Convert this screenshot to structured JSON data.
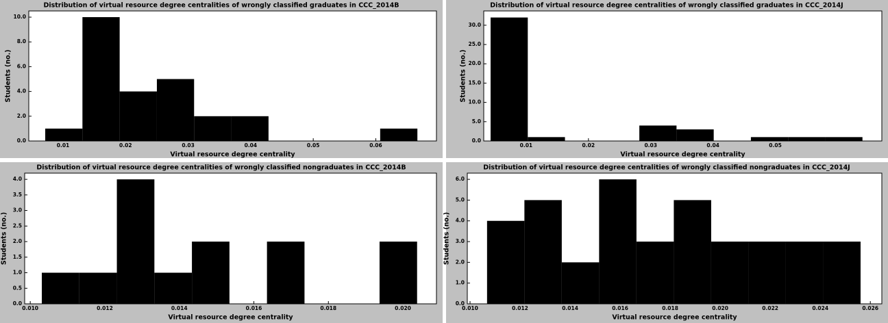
{
  "chart_data": [
    {
      "type": "histogram",
      "title": "Distribution of virtual resource degree centralities of wrongly classified graduates in CCC_2014B",
      "xlabel": "Virtual resource degree centrality",
      "ylabel": "Students (no.)",
      "color": "#000000",
      "bins": [
        0.00715,
        0.0131,
        0.01905,
        0.025,
        0.03095,
        0.0369,
        0.04285,
        0.0488,
        0.05475,
        0.0607,
        0.06665
      ],
      "counts": [
        1,
        10,
        4,
        5,
        2,
        2,
        0,
        0,
        0,
        1
      ],
      "xlim": [
        0.00452,
        0.0697
      ],
      "xticks": [
        0.01,
        0.02,
        0.03,
        0.04,
        0.05,
        0.06
      ],
      "ylim": [
        0,
        10.5
      ],
      "yticks": [
        {
          "value": 0,
          "label": "0.0"
        },
        {
          "value": 2,
          "label": "2.0"
        },
        {
          "value": 4,
          "label": "4.0"
        },
        {
          "value": 6,
          "label": "6.0"
        },
        {
          "value": 8,
          "label": "8.0"
        },
        {
          "value": 10,
          "label": "10.0"
        }
      ]
    },
    {
      "type": "histogram",
      "title": "Distribution of virtual resource degree centralities of wrongly classified graduates in CCC_2014J",
      "xlabel": "Virtual resource degree centrality",
      "ylabel": "Students (no.)",
      "color": "#000000",
      "bins": [
        0.00429,
        0.01026,
        0.01623,
        0.0222,
        0.02817,
        0.03414,
        0.04011,
        0.04608,
        0.05205,
        0.05802,
        0.06399
      ],
      "counts": [
        32,
        1,
        0,
        0,
        4,
        3,
        0,
        1,
        1,
        1
      ],
      "xlim": [
        0.00319,
        0.0671
      ],
      "xticks": [
        0.01,
        0.02,
        0.03,
        0.04,
        0.05
      ],
      "ylim": [
        0,
        33.7
      ],
      "yticks": [
        {
          "value": 0,
          "label": "0.0"
        },
        {
          "value": 5,
          "label": "5.0"
        },
        {
          "value": 10,
          "label": "10.0"
        },
        {
          "value": 15,
          "label": "15.0"
        },
        {
          "value": 20,
          "label": "20.0"
        },
        {
          "value": 25,
          "label": "25.0"
        },
        {
          "value": 30,
          "label": "30.0"
        }
      ]
    },
    {
      "type": "histogram",
      "title": "Distribution of virtual resource degree centralities of wrongly classified nongraduates in CCC_2014B",
      "xlabel": "Virtual resource degree centrality",
      "ylabel": "Students (no.)",
      "color": "#000000",
      "bins": [
        0.01031,
        0.011317,
        0.012324,
        0.013331,
        0.014338,
        0.015345,
        0.016352,
        0.017359,
        0.018366,
        0.019373,
        0.02038
      ],
      "counts": [
        1,
        1,
        4,
        1,
        2,
        0,
        2,
        0,
        0,
        2
      ],
      "xlim": [
        0.00985,
        0.0209
      ],
      "xticks": [
        {
          "value": 0.01,
          "label": "0.010"
        },
        0.012,
        0.014,
        0.016,
        0.018,
        {
          "value": 0.02,
          "label": "0.020"
        }
      ],
      "ylim": [
        0,
        4.2
      ],
      "yticks": [
        {
          "value": 0,
          "label": "0.0"
        },
        0.5,
        {
          "value": 1,
          "label": "1.0"
        },
        1.5,
        {
          "value": 2,
          "label": "2.0"
        },
        2.5,
        {
          "value": 3,
          "label": "3.0"
        },
        3.5,
        {
          "value": 4,
          "label": "4.0"
        }
      ]
    },
    {
      "type": "histogram",
      "title": "Distribution of virtual resource degree centralities of wrongly classified nongraduates in CCC_2014J",
      "xlabel": "Virtual resource degree centrality",
      "ylabel": "Students (no.)",
      "color": "#000000",
      "bins": [
        0.01068,
        0.012173,
        0.013666,
        0.015159,
        0.016652,
        0.018145,
        0.019638,
        0.021131,
        0.022624,
        0.024117,
        0.02561
      ],
      "counts": [
        4,
        5,
        2,
        6,
        3,
        5,
        3,
        3,
        3,
        3
      ],
      "xlim": [
        0.00989,
        0.02646
      ],
      "xticks": [
        {
          "value": 0.01,
          "label": "0.010"
        },
        0.012,
        0.014,
        0.016,
        0.018,
        {
          "value": 0.02,
          "label": "0.020"
        },
        0.022,
        0.024,
        0.026
      ],
      "ylim": [
        0,
        6.3
      ],
      "yticks": [
        {
          "value": 0,
          "label": "0.0"
        },
        {
          "value": 1,
          "label": "1.0"
        },
        {
          "value": 2,
          "label": "2.0"
        },
        {
          "value": 3,
          "label": "3.0"
        },
        {
          "value": 4,
          "label": "4.0"
        },
        {
          "value": 5,
          "label": "5.0"
        },
        {
          "value": 6,
          "label": "6.0"
        }
      ]
    }
  ]
}
